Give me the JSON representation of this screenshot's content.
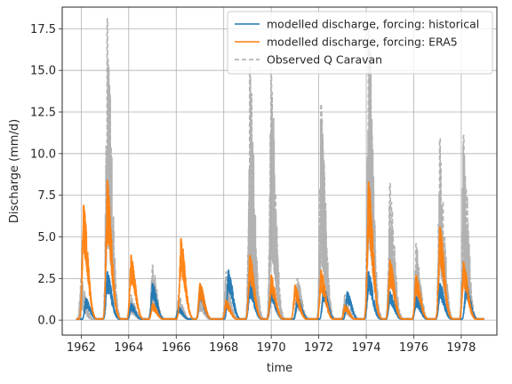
{
  "chart_data": {
    "type": "line",
    "title": "",
    "xlabel": "time",
    "ylabel": "Discharge (mm/d)",
    "xlim": [
      1961.2,
      1979.5
    ],
    "ylim": [
      -0.9,
      18.8
    ],
    "xticks": [
      1962,
      1964,
      1966,
      1968,
      1970,
      1972,
      1974,
      1976,
      1978
    ],
    "xtick_labels": [
      "1962",
      "1964",
      "1966",
      "1968",
      "1970",
      "1972",
      "1974",
      "1976",
      "1978"
    ],
    "yticks": [
      0.0,
      2.5,
      5.0,
      7.5,
      10.0,
      12.5,
      15.0,
      17.5
    ],
    "ytick_labels": [
      "0.0",
      "2.5",
      "5.0",
      "7.5",
      "10.0",
      "12.5",
      "15.0",
      "17.5"
    ],
    "grid": true,
    "legend_position": "top-right",
    "series": [
      {
        "name": "modelled discharge, forcing: historical",
        "color": "#1f77b4",
        "style": "solid",
        "peaks": [
          {
            "x": 1962.2,
            "y": 1.3
          },
          {
            "x": 1963.1,
            "y": 2.9
          },
          {
            "x": 1964.1,
            "y": 1.0
          },
          {
            "x": 1965.0,
            "y": 2.2
          },
          {
            "x": 1966.1,
            "y": 0.8
          },
          {
            "x": 1967.0,
            "y": 2.0
          },
          {
            "x": 1968.2,
            "y": 3.0
          },
          {
            "x": 1969.1,
            "y": 2.4
          },
          {
            "x": 1970.0,
            "y": 1.9
          },
          {
            "x": 1971.1,
            "y": 1.4
          },
          {
            "x": 1972.2,
            "y": 2.0
          },
          {
            "x": 1973.2,
            "y": 1.7
          },
          {
            "x": 1974.1,
            "y": 2.9
          },
          {
            "x": 1975.0,
            "y": 1.7
          },
          {
            "x": 1976.1,
            "y": 1.4
          },
          {
            "x": 1977.1,
            "y": 2.2
          },
          {
            "x": 1978.2,
            "y": 2.2
          }
        ]
      },
      {
        "name": "modelled discharge, forcing: ERA5",
        "color": "#ff7f0e",
        "style": "solid",
        "peaks": [
          {
            "x": 1962.1,
            "y": 6.9
          },
          {
            "x": 1963.1,
            "y": 8.4
          },
          {
            "x": 1964.1,
            "y": 3.9
          },
          {
            "x": 1965.0,
            "y": 1.0
          },
          {
            "x": 1966.2,
            "y": 4.9
          },
          {
            "x": 1967.0,
            "y": 2.2
          },
          {
            "x": 1968.1,
            "y": 1.2
          },
          {
            "x": 1969.1,
            "y": 3.9
          },
          {
            "x": 1970.0,
            "y": 2.7
          },
          {
            "x": 1971.0,
            "y": 2.1
          },
          {
            "x": 1972.1,
            "y": 3.0
          },
          {
            "x": 1973.1,
            "y": 0.9
          },
          {
            "x": 1974.1,
            "y": 8.3
          },
          {
            "x": 1975.0,
            "y": 3.6
          },
          {
            "x": 1976.1,
            "y": 2.7
          },
          {
            "x": 1977.1,
            "y": 5.6
          },
          {
            "x": 1978.1,
            "y": 3.5
          }
        ]
      },
      {
        "name": "Observed Q Caravan",
        "color": "#aaaaaa",
        "style": "dashed",
        "peaks": [
          {
            "x": 1962.0,
            "y": 2.6
          },
          {
            "x": 1963.1,
            "y": 18.1
          },
          {
            "x": 1964.1,
            "y": 1.5
          },
          {
            "x": 1965.0,
            "y": 3.3
          },
          {
            "x": 1966.1,
            "y": 1.5
          },
          {
            "x": 1967.0,
            "y": 2.2
          },
          {
            "x": 1968.1,
            "y": 2.9
          },
          {
            "x": 1969.1,
            "y": 15.2
          },
          {
            "x": 1970.0,
            "y": 14.8
          },
          {
            "x": 1971.1,
            "y": 2.5
          },
          {
            "x": 1972.1,
            "y": 13.0
          },
          {
            "x": 1973.1,
            "y": 1.5
          },
          {
            "x": 1974.1,
            "y": 17.8
          },
          {
            "x": 1975.0,
            "y": 8.2
          },
          {
            "x": 1976.1,
            "y": 4.6
          },
          {
            "x": 1977.1,
            "y": 10.9
          },
          {
            "x": 1978.1,
            "y": 11.1
          }
        ]
      }
    ]
  }
}
